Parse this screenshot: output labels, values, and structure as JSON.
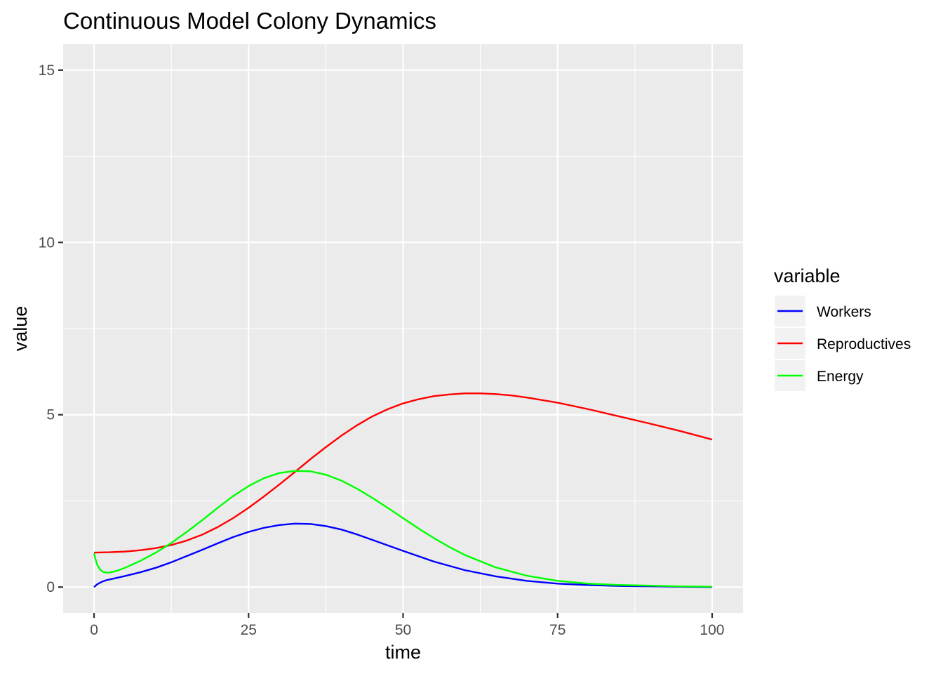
{
  "chart_data": {
    "type": "line",
    "title": "Continuous Model Colony Dynamics",
    "xlabel": "time",
    "ylabel": "value",
    "xlim": [
      -5,
      105
    ],
    "ylim": [
      -0.75,
      15.75
    ],
    "x_ticks": [
      0,
      25,
      50,
      75,
      100
    ],
    "y_ticks": [
      0,
      5,
      10,
      15
    ],
    "x_tick_labels": [
      "0",
      "25",
      "50",
      "75",
      "100"
    ],
    "y_tick_labels": [
      "0",
      "5",
      "10",
      "15"
    ],
    "grid": true,
    "background": "#EBEBEB",
    "legend": {
      "title": "variable",
      "position": "right"
    },
    "series": [
      {
        "name": "Workers",
        "color": "#0000FF",
        "x": [
          0,
          0.5,
          1,
          1.5,
          2,
          3,
          4,
          5,
          7.5,
          10,
          12.5,
          15,
          17.5,
          20,
          22.5,
          25,
          27.5,
          30,
          32.5,
          35,
          37.5,
          40,
          42.5,
          45,
          47.5,
          50,
          55,
          60,
          65,
          70,
          75,
          80,
          85,
          90,
          95,
          100
        ],
        "y": [
          0.0,
          0.08,
          0.13,
          0.17,
          0.2,
          0.24,
          0.28,
          0.32,
          0.43,
          0.56,
          0.72,
          0.9,
          1.08,
          1.27,
          1.45,
          1.6,
          1.72,
          1.8,
          1.84,
          1.83,
          1.77,
          1.67,
          1.53,
          1.37,
          1.21,
          1.05,
          0.74,
          0.49,
          0.31,
          0.18,
          0.1,
          0.06,
          0.03,
          0.02,
          0.01,
          0.0
        ]
      },
      {
        "name": "Reproductives",
        "color": "#FF0000",
        "x": [
          0,
          2.5,
          5,
          7.5,
          10,
          12.5,
          15,
          17.5,
          20,
          22.5,
          25,
          27.5,
          30,
          32.5,
          35,
          37.5,
          40,
          42.5,
          45,
          47.5,
          50,
          52.5,
          55,
          57.5,
          60,
          62.5,
          65,
          67.5,
          70,
          75,
          80,
          85,
          90,
          95,
          100
        ],
        "y": [
          1.0,
          1.01,
          1.03,
          1.07,
          1.13,
          1.22,
          1.35,
          1.52,
          1.74,
          2.0,
          2.3,
          2.63,
          2.98,
          3.34,
          3.71,
          4.06,
          4.39,
          4.69,
          4.95,
          5.16,
          5.33,
          5.45,
          5.54,
          5.59,
          5.62,
          5.62,
          5.6,
          5.56,
          5.5,
          5.35,
          5.16,
          4.95,
          4.74,
          4.52,
          4.28
        ]
      },
      {
        "name": "Energy",
        "color": "#00FF00",
        "x": [
          0,
          0.25,
          0.5,
          1,
          1.5,
          2,
          2.5,
          3,
          4,
          5,
          7.5,
          10,
          12.5,
          15,
          17.5,
          20,
          22.5,
          25,
          27.5,
          30,
          32.5,
          35,
          37.5,
          40,
          42.5,
          45,
          47.5,
          50,
          52.5,
          55,
          57.5,
          60,
          65,
          70,
          75,
          80,
          85,
          90,
          95,
          100
        ],
        "y": [
          0.98,
          0.8,
          0.65,
          0.5,
          0.44,
          0.42,
          0.42,
          0.44,
          0.49,
          0.56,
          0.76,
          1.0,
          1.28,
          1.6,
          1.94,
          2.3,
          2.64,
          2.93,
          3.16,
          3.31,
          3.37,
          3.36,
          3.26,
          3.09,
          2.86,
          2.59,
          2.3,
          2.0,
          1.7,
          1.42,
          1.16,
          0.93,
          0.57,
          0.33,
          0.18,
          0.1,
          0.06,
          0.04,
          0.02,
          0.01
        ]
      }
    ]
  }
}
